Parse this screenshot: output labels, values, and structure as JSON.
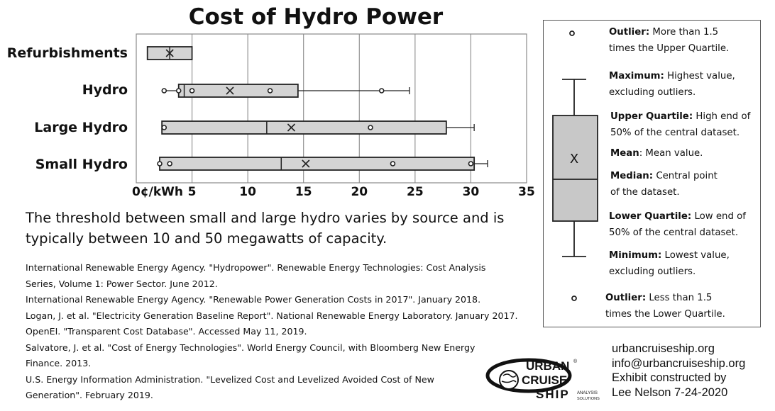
{
  "chart_data": {
    "type": "boxplot",
    "title": "Cost of Hydro Power",
    "xlim": [
      0,
      35
    ],
    "x_ticks": [
      "0¢/kWh",
      "5",
      "10",
      "15",
      "20",
      "25",
      "30",
      "35"
    ],
    "x_tick_values": [
      0,
      5,
      10,
      15,
      20,
      25,
      30,
      35
    ],
    "grid": "vertical",
    "categories": [
      "Refurbishments",
      "Hydro",
      "Large Hydro",
      "Small Hydro"
    ],
    "series": [
      {
        "category": "Refurbishments",
        "min": 1,
        "q1": 1,
        "median": 3,
        "q3": 5,
        "max": 5,
        "mean": 3,
        "outliers": []
      },
      {
        "category": "Hydro",
        "min": 2.5,
        "q1": 3.8,
        "median": 4.3,
        "q3": 14.5,
        "max": 24.5,
        "mean": 8.4,
        "outliers": [
          2.5,
          3.8,
          5.0,
          12.0,
          22.0
        ]
      },
      {
        "category": "Large Hydro",
        "min": 2.3,
        "q1": 2.3,
        "median": 11.7,
        "q3": 27.8,
        "max": 30.3,
        "mean": 13.9,
        "outliers": [
          2.5,
          21.0
        ]
      },
      {
        "category": "Small Hydro",
        "min": 2.1,
        "q1": 2.1,
        "median": 13.0,
        "q3": 30.3,
        "max": 31.5,
        "mean": 15.2,
        "outliers": [
          2.1,
          3.0,
          23.0,
          30.0
        ]
      }
    ]
  },
  "note": "The threshold between small and large hydro varies by source and is typically between 10 and 50 megawatts of capacity.",
  "sources": [
    "International Renewable Energy Agency. \"Hydropower\". Renewable Energy Technologies: Cost Analysis",
    "Series, Volume 1: Power Sector. June 2012.",
    "International Renewable Energy Agency. \"Renewable Power Generation Costs in 2017\". January 2018.",
    "Logan, J. et al. \"Electricity Generation Baseline Report\". National Renewable Energy Laboratory. January 2017.",
    "OpenEI. \"Transparent Cost Database\". Accessed May 11, 2019.",
    "Salvatore, J. et al. \"Cost of Energy Technologies\". World Energy Council, with Bloomberg New Energy",
    "Finance. 2013.",
    "U.S. Energy Information Administration. \"Levelized Cost and Levelized Avoided Cost of New",
    "Generation\". February 2019."
  ],
  "legend": {
    "outlier_high": {
      "term": "Outlier:",
      "desc": " More than 1.5",
      "desc2": "times the Upper Quartile."
    },
    "maximum": {
      "term": "Maximum:",
      "desc": " Highest value,",
      "desc2": "excluding outliers."
    },
    "upper_quartile": {
      "term": "Upper Quartile:",
      "desc": " High end of",
      "desc2": "50% of the central dataset."
    },
    "mean": {
      "term": "Mean",
      "desc": ": Mean value."
    },
    "mean_marker": "X",
    "median": {
      "term": "Median:",
      "desc": " Central point",
      "desc2": "of the dataset."
    },
    "lower_quartile": {
      "term": "Lower Quartile:",
      "desc": " Low end of",
      "desc2": "50% of the central dataset."
    },
    "minimum": {
      "term": "Minimum:",
      "desc": " Lowest value,",
      "desc2": "excluding outliers."
    },
    "outlier_low": {
      "term": "Outlier:",
      "desc": " Less than 1.5",
      "desc2": "times the Lower Quartile."
    }
  },
  "contact": [
    "urbancruiseship.org",
    "info@urbancruiseship.org",
    "Exhibit constructed by",
    "Lee Nelson 7-24-2020"
  ],
  "logo": {
    "line1": "URBAN",
    "line2": "CRUISE",
    "line3": "SHIP",
    "tag1": "ANALYSIS",
    "tag2": "SOLUTIONS",
    "mark": "®"
  },
  "colors": {
    "box_fill": "#d4d4d4",
    "stroke": "#222222",
    "grid": "#8a8a8a"
  }
}
